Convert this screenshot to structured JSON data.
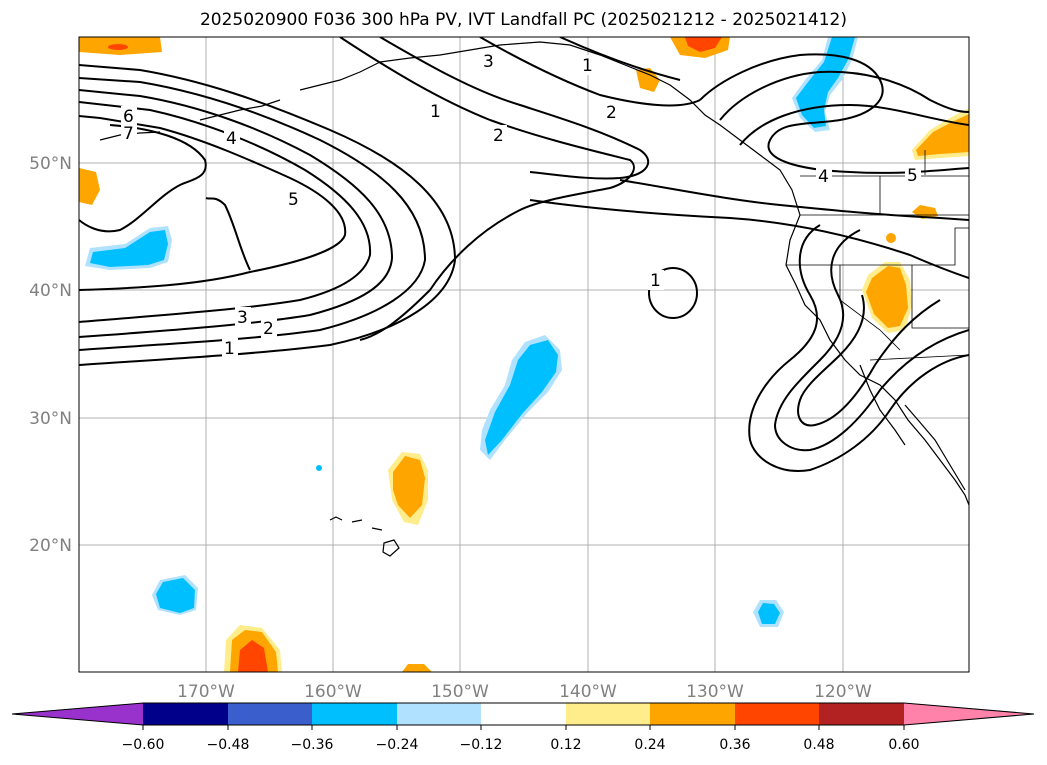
{
  "title": "2025020900 F036 300 hPa PV, IVT Landfall PC (2025021212 - 2025021412)",
  "map": {
    "lat_labels": [
      "50°N",
      "40°N",
      "30°N",
      "20°N"
    ],
    "lon_labels": [
      "170°W",
      "160°W",
      "150°W",
      "140°W",
      "130°W",
      "120°W"
    ],
    "pv_contour_labels": [
      "6",
      "7",
      "4",
      "5",
      "3",
      "2",
      "1",
      "3",
      "1",
      "2",
      "1",
      "2",
      "1",
      "4",
      "5"
    ]
  },
  "colorbar": {
    "ticks": [
      "−0.60",
      "−0.48",
      "−0.36",
      "−0.24",
      "−0.12",
      "0.12",
      "0.24",
      "0.36",
      "0.48",
      "0.60"
    ],
    "colors": [
      "#9932cc",
      "#00008b",
      "#3a5fcd",
      "#00bfff",
      "#b0e2ff",
      "#ffffff",
      "#ffec8b",
      "#ffa500",
      "#ff4500",
      "#b22222",
      "#ff82ab"
    ]
  }
}
